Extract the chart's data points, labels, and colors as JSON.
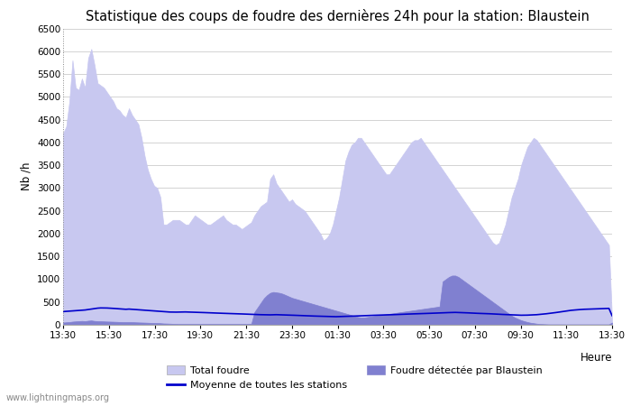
{
  "title": "Statistique des coups de foudre des dernières 24h pour la station: Blaustein",
  "xlabel": "Heure",
  "ylabel": "Nb /h",
  "watermark": "www.lightningmaps.org",
  "ylim": [
    0,
    6500
  ],
  "yticks": [
    0,
    500,
    1000,
    1500,
    2000,
    2500,
    3000,
    3500,
    4000,
    4500,
    5000,
    5500,
    6000,
    6500
  ],
  "xtick_labels": [
    "13:30",
    "15:30",
    "17:30",
    "19:30",
    "21:30",
    "23:30",
    "01:30",
    "03:30",
    "05:30",
    "07:30",
    "09:30",
    "11:30",
    "13:30"
  ],
  "color_total": "#c8c8f0",
  "color_blaustein": "#8080d0",
  "color_moyenne": "#0000cc",
  "legend_total": "Total foudre",
  "legend_blaustein": "Foudre détectée par Blaustein",
  "legend_moyenne": "Moyenne de toutes les stations",
  "total_foudre": [
    4200,
    4350,
    4900,
    5800,
    5200,
    5150,
    5400,
    5200,
    5850,
    6050,
    5700,
    5300,
    5250,
    5200,
    5100,
    5000,
    4900,
    4750,
    4700,
    4600,
    4550,
    4750,
    4600,
    4500,
    4400,
    4100,
    3700,
    3400,
    3200,
    3050,
    3000,
    2800,
    2200,
    2200,
    2250,
    2300,
    2300,
    2300,
    2250,
    2200,
    2200,
    2300,
    2400,
    2350,
    2300,
    2250,
    2200,
    2200,
    2250,
    2300,
    2350,
    2400,
    2300,
    2250,
    2200,
    2200,
    2150,
    2100,
    2150,
    2200,
    2250,
    2400,
    2500,
    2600,
    2650,
    2700,
    3200,
    3300,
    3100,
    3000,
    2900,
    2800,
    2700,
    2750,
    2650,
    2600,
    2550,
    2500,
    2400,
    2300,
    2200,
    2100,
    2000,
    1850,
    1900,
    2000,
    2200,
    2500,
    2800,
    3200,
    3600,
    3800,
    3950,
    4000,
    4100,
    4100,
    4000,
    3900,
    3800,
    3700,
    3600,
    3500,
    3400,
    3300,
    3300,
    3400,
    3500,
    3600,
    3700,
    3800,
    3900,
    4000,
    4050,
    4050,
    4100,
    4000,
    3900,
    3800,
    3700,
    3600,
    3500,
    3400,
    3300,
    3200,
    3100,
    3000,
    2900,
    2800,
    2700,
    2600,
    2500,
    2400,
    2300,
    2200,
    2100,
    2000,
    1900,
    1800,
    1750,
    1800,
    2000,
    2200,
    2500,
    2800,
    3000,
    3200,
    3500,
    3700,
    3900,
    4000,
    4100,
    4050,
    3950,
    3850,
    3750,
    3650,
    3550,
    3450,
    3350,
    3250,
    3150,
    3050,
    2950,
    2850,
    2750,
    2650,
    2550,
    2450,
    2350,
    2250,
    2150,
    2050,
    1950,
    1850,
    1750,
    100
  ],
  "blaustein": [
    50,
    55,
    60,
    70,
    75,
    80,
    85,
    80,
    90,
    95,
    85,
    80,
    78,
    75,
    72,
    70,
    68,
    65,
    62,
    60,
    58,
    60,
    58,
    55,
    52,
    50,
    48,
    45,
    42,
    40,
    38,
    35,
    30,
    28,
    25,
    22,
    20,
    18,
    18,
    18,
    18,
    18,
    18,
    18,
    18,
    18,
    18,
    18,
    18,
    18,
    18,
    18,
    18,
    18,
    18,
    18,
    18,
    18,
    20,
    22,
    25,
    280,
    380,
    480,
    580,
    650,
    700,
    720,
    710,
    700,
    680,
    650,
    620,
    590,
    570,
    550,
    530,
    510,
    490,
    470,
    450,
    430,
    410,
    390,
    370,
    350,
    330,
    310,
    290,
    270,
    250,
    230,
    210,
    190,
    170,
    160,
    160,
    170,
    180,
    190,
    200,
    210,
    220,
    230,
    240,
    250,
    260,
    270,
    280,
    290,
    300,
    310,
    320,
    330,
    340,
    350,
    360,
    370,
    380,
    390,
    400,
    950,
    1000,
    1050,
    1080,
    1080,
    1050,
    1000,
    950,
    900,
    850,
    800,
    750,
    700,
    650,
    600,
    550,
    500,
    450,
    400,
    350,
    300,
    250,
    200,
    160,
    130,
    100,
    80,
    60,
    45,
    35,
    25,
    18,
    15,
    12,
    10,
    10,
    10,
    10,
    10,
    10,
    10,
    10,
    10,
    10,
    10,
    10,
    10,
    10,
    10,
    10,
    10,
    10,
    10,
    10,
    50
  ],
  "moyenne": [
    290,
    295,
    300,
    305,
    310,
    315,
    320,
    325,
    335,
    345,
    355,
    365,
    370,
    370,
    368,
    365,
    360,
    355,
    350,
    345,
    340,
    345,
    340,
    335,
    330,
    325,
    320,
    315,
    310,
    305,
    300,
    295,
    290,
    285,
    280,
    278,
    278,
    280,
    282,
    282,
    280,
    278,
    275,
    272,
    270,
    268,
    265,
    262,
    260,
    258,
    255,
    252,
    250,
    248,
    245,
    242,
    240,
    238,
    235,
    232,
    230,
    228,
    225,
    222,
    220,
    218,
    218,
    220,
    222,
    220,
    218,
    215,
    212,
    210,
    208,
    205,
    202,
    200,
    198,
    195,
    192,
    190,
    188,
    185,
    182,
    180,
    178,
    178,
    180,
    182,
    185,
    188,
    190,
    192,
    195,
    198,
    200,
    202,
    205,
    208,
    210,
    212,
    215,
    218,
    220,
    222,
    225,
    228,
    230,
    232,
    235,
    238,
    240,
    242,
    245,
    248,
    250,
    252,
    255,
    258,
    260,
    262,
    265,
    268,
    270,
    272,
    270,
    268,
    265,
    262,
    258,
    255,
    252,
    250,
    248,
    245,
    242,
    238,
    235,
    232,
    228,
    225,
    222,
    218,
    215,
    212,
    210,
    210,
    212,
    215,
    218,
    222,
    228,
    235,
    242,
    250,
    258,
    268,
    278,
    288,
    298,
    308,
    318,
    325,
    330,
    335,
    340,
    342,
    345,
    348,
    350,
    352,
    355,
    358,
    360,
    200
  ]
}
